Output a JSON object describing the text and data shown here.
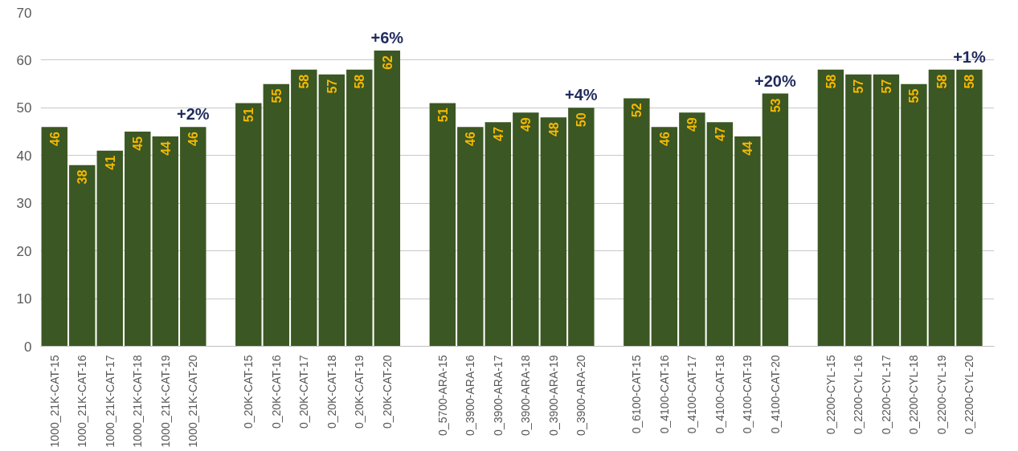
{
  "chart_data": {
    "type": "bar",
    "categories": [
      "1000_21K-CAT-15",
      "1000_21K-CAT-16",
      "1000_21K-CAT-17",
      "1000_21K-CAT-18",
      "1000_21K-CAT-19",
      "1000_21K-CAT-20",
      null,
      "0_20K-CAT-15",
      "0_20K-CAT-16",
      "0_20K-CAT-17",
      "0_20K-CAT-18",
      "0_20K-CAT-19",
      "0_20K-CAT-20",
      null,
      "0_5700-ARA-15",
      "0_3900-ARA-16",
      "0_3900-ARA-17",
      "0_3900-ARA-18",
      "0_3900-ARA-19",
      "0_3900-ARA-20",
      null,
      "0_6100-CAT-15",
      "0_4100-CAT-16",
      "0_4100-CAT-17",
      "0_4100-CAT-18",
      "0_4100-CAT-19",
      "0_4100-CAT-20",
      null,
      "0_2200-CYL-15",
      "0_2200-CYL-16",
      "0_2200-CYL-17",
      "0_2200-CYL-18",
      "0_2200-CYL-19",
      "0_2200-CYL-20"
    ],
    "values": [
      46,
      38,
      41,
      45,
      44,
      46,
      null,
      51,
      55,
      58,
      57,
      58,
      62,
      null,
      51,
      46,
      47,
      49,
      48,
      50,
      null,
      52,
      46,
      49,
      47,
      44,
      53,
      null,
      58,
      57,
      57,
      55,
      58,
      58
    ],
    "color": "#3b5723",
    "data_labels": true,
    "ylim": [
      0,
      70
    ],
    "yticks": [
      0,
      10,
      20,
      30,
      40,
      50,
      60,
      70
    ],
    "grid": "y",
    "annotations": [
      {
        "text": "+2%",
        "x": "1000_21K-CAT-20",
        "y": 46
      },
      {
        "text": "+6%",
        "x": "0_20K-CAT-20",
        "y": 62
      },
      {
        "text": "+4%",
        "x": "0_3900-ARA-20",
        "y": 50
      },
      {
        "text": "+20%",
        "x": "0_4100-CAT-20",
        "y": 53
      },
      {
        "text": "+1%",
        "x": "0_2200-CYL-20",
        "y": 58
      }
    ]
  }
}
